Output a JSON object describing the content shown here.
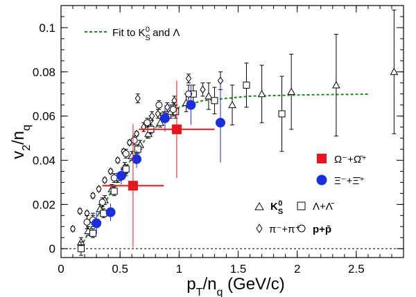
{
  "chart_data": {
    "type": "scatter",
    "xlabel": "p_T/n_q (GeV/c)",
    "ylabel": "v_2/n_q",
    "xlim": [
      0,
      2.9
    ],
    "ylim": [
      -0.004,
      0.11
    ],
    "xticks": [
      0,
      0.5,
      1,
      1.5,
      2,
      2.5
    ],
    "xtick_labels": [
      "0",
      "0.5",
      "1",
      "1.5",
      "2",
      "2.5"
    ],
    "yticks": [
      0,
      0.02,
      0.04,
      0.06,
      0.08,
      0.1
    ],
    "ytick_labels": [
      "0",
      "0.02",
      "0.04",
      "0.06",
      "0.08",
      "0.1"
    ],
    "zero_line": "dashed",
    "grid": false,
    "fit": {
      "name": "Fit to K_S^0 and Λ",
      "color": "#1a8a1a",
      "x": [
        0.17,
        0.3,
        0.45,
        0.6,
        0.75,
        0.9,
        1.0,
        1.2,
        1.4,
        1.6,
        1.8,
        2.0,
        2.2,
        2.4,
        2.6
      ],
      "y": [
        0.001,
        0.014,
        0.028,
        0.041,
        0.052,
        0.06,
        0.064,
        0.067,
        0.068,
        0.069,
        0.0693,
        0.0695,
        0.0697,
        0.0698,
        0.0699
      ]
    },
    "series": [
      {
        "name": "Ω⁻+Ω̄⁺",
        "marker": "square-filled",
        "color": "#e8161c",
        "points": [
          {
            "x": 0.61,
            "y": 0.0285,
            "yerr": 0.028,
            "xerr": 0.26
          },
          {
            "x": 0.98,
            "y": 0.054,
            "yerr": 0.022,
            "xerr": 0.32
          }
        ]
      },
      {
        "name": "Ξ⁻+Ξ̄⁺",
        "marker": "circle-filled",
        "color": "#1a2ee0",
        "points": [
          {
            "x": 0.3,
            "y": 0.0115,
            "yerr": 0.005
          },
          {
            "x": 0.42,
            "y": 0.0165,
            "yerr": 0.004
          },
          {
            "x": 0.51,
            "y": 0.033,
            "yerr": 0.004
          },
          {
            "x": 0.64,
            "y": 0.0405,
            "yerr": 0.004
          },
          {
            "x": 0.88,
            "y": 0.059,
            "yerr": 0.006
          },
          {
            "x": 1.1,
            "y": 0.065,
            "yerr": 0.009
          },
          {
            "x": 1.35,
            "y": 0.057,
            "yerr": 0.018
          }
        ]
      },
      {
        "name": "K_S^0",
        "marker": "triangle-open",
        "color": "#000000",
        "points": [
          {
            "x": 0.17,
            "y": 0.003,
            "yerr": 0.002
          },
          {
            "x": 0.23,
            "y": 0.008,
            "yerr": 0.002
          },
          {
            "x": 0.27,
            "y": 0.013,
            "yerr": 0.002
          },
          {
            "x": 0.33,
            "y": 0.018,
            "yerr": 0.002
          },
          {
            "x": 0.37,
            "y": 0.022,
            "yerr": 0.002
          },
          {
            "x": 0.43,
            "y": 0.027,
            "yerr": 0.002
          },
          {
            "x": 0.48,
            "y": 0.032,
            "yerr": 0.002
          },
          {
            "x": 0.54,
            "y": 0.037,
            "yerr": 0.002
          },
          {
            "x": 0.6,
            "y": 0.042,
            "yerr": 0.002
          },
          {
            "x": 0.67,
            "y": 0.047,
            "yerr": 0.002
          },
          {
            "x": 0.74,
            "y": 0.052,
            "yerr": 0.002
          },
          {
            "x": 0.84,
            "y": 0.057,
            "yerr": 0.002
          },
          {
            "x": 0.93,
            "y": 0.062,
            "yerr": 0.003
          },
          {
            "x": 1.06,
            "y": 0.066,
            "yerr": 0.004
          },
          {
            "x": 1.25,
            "y": 0.069,
            "yerr": 0.006
          },
          {
            "x": 1.45,
            "y": 0.065,
            "yerr": 0.009
          },
          {
            "x": 1.7,
            "y": 0.07,
            "yerr": 0.013
          },
          {
            "x": 1.95,
            "y": 0.071,
            "yerr": 0.017
          },
          {
            "x": 2.33,
            "y": 0.074,
            "yerr": 0.023
          },
          {
            "x": 2.82,
            "y": 0.08,
            "yerr": 0.028
          }
        ]
      },
      {
        "name": "Λ+Λ̄",
        "marker": "square-open",
        "color": "#000000",
        "points": [
          {
            "x": 0.17,
            "y": 0.0,
            "yerr": 0.003
          },
          {
            "x": 0.27,
            "y": 0.007,
            "yerr": 0.002
          },
          {
            "x": 0.36,
            "y": 0.016,
            "yerr": 0.002
          },
          {
            "x": 0.45,
            "y": 0.026,
            "yerr": 0.002
          },
          {
            "x": 0.55,
            "y": 0.036,
            "yerr": 0.002
          },
          {
            "x": 0.65,
            "y": 0.045,
            "yerr": 0.002
          },
          {
            "x": 0.76,
            "y": 0.054,
            "yerr": 0.002
          },
          {
            "x": 0.87,
            "y": 0.06,
            "yerr": 0.002
          },
          {
            "x": 0.97,
            "y": 0.062,
            "yerr": 0.003
          },
          {
            "x": 1.12,
            "y": 0.07,
            "yerr": 0.004
          },
          {
            "x": 1.3,
            "y": 0.067,
            "yerr": 0.006
          },
          {
            "x": 1.57,
            "y": 0.074,
            "yerr": 0.01
          },
          {
            "x": 1.87,
            "y": 0.061,
            "yerr": 0.017
          }
        ]
      },
      {
        "name": "π⁻+π⁺",
        "marker": "diamond-open",
        "color": "#000000",
        "points": [
          {
            "x": 0.1,
            "y": 0.009,
            "yerr": 0.001
          },
          {
            "x": 0.16,
            "y": 0.017,
            "yerr": 0.001
          },
          {
            "x": 0.22,
            "y": 0.016,
            "yerr": 0.001
          },
          {
            "x": 0.27,
            "y": 0.024,
            "yerr": 0.001
          },
          {
            "x": 0.32,
            "y": 0.027,
            "yerr": 0.001
          },
          {
            "x": 0.37,
            "y": 0.031,
            "yerr": 0.001
          },
          {
            "x": 0.42,
            "y": 0.035,
            "yerr": 0.001
          },
          {
            "x": 0.48,
            "y": 0.04,
            "yerr": 0.001
          },
          {
            "x": 0.53,
            "y": 0.044,
            "yerr": 0.001
          },
          {
            "x": 0.58,
            "y": 0.048,
            "yerr": 0.001
          },
          {
            "x": 0.64,
            "y": 0.052,
            "yerr": 0.001
          },
          {
            "x": 0.7,
            "y": 0.055,
            "yerr": 0.002
          },
          {
            "x": 0.76,
            "y": 0.058,
            "yerr": 0.002
          },
          {
            "x": 0.82,
            "y": 0.061,
            "yerr": 0.002
          },
          {
            "x": 0.9,
            "y": 0.064,
            "yerr": 0.002
          },
          {
            "x": 0.96,
            "y": 0.067,
            "yerr": 0.002
          },
          {
            "x": 1.08,
            "y": 0.077,
            "yerr": 0.002
          },
          {
            "x": 1.2,
            "y": 0.072,
            "yerr": 0.003
          },
          {
            "x": 1.35,
            "y": 0.076,
            "yerr": 0.004
          },
          {
            "x": 0.55,
            "y": 0.035,
            "yerr": 0.002
          },
          {
            "x": 0.65,
            "y": 0.068,
            "yerr": 0.002
          },
          {
            "x": 0.77,
            "y": 0.06,
            "yerr": 0.002
          }
        ]
      },
      {
        "name": "p+p̄",
        "marker": "circle-open",
        "color": "#000000",
        "points": [
          {
            "x": 0.22,
            "y": 0.012,
            "yerr": 0.003
          },
          {
            "x": 0.27,
            "y": 0.013,
            "yerr": 0.003
          },
          {
            "x": 0.35,
            "y": 0.021,
            "yerr": 0.002
          },
          {
            "x": 0.45,
            "y": 0.032,
            "yerr": 0.002
          },
          {
            "x": 0.55,
            "y": 0.043,
            "yerr": 0.002
          },
          {
            "x": 0.62,
            "y": 0.049,
            "yerr": 0.002
          },
          {
            "x": 0.73,
            "y": 0.057,
            "yerr": 0.002
          },
          {
            "x": 0.83,
            "y": 0.065,
            "yerr": 0.002
          },
          {
            "x": 0.95,
            "y": 0.063,
            "yerr": 0.003
          },
          {
            "x": 1.08,
            "y": 0.07,
            "yerr": 0.004
          }
        ]
      }
    ],
    "legend": {
      "fit_label_prefix": "Fit to K",
      "fit_label_sub": "S",
      "fit_label_sup": "0",
      "fit_label_suffix": " and Λ",
      "omega_label": "Ω⁻+Ω̄⁺",
      "xi_label": "Ξ⁻+Ξ̄⁺",
      "k0_label_main": "K",
      "k0_label_sub": "S",
      "k0_label_sup": "0",
      "lambda_label": "Λ+Λ̄",
      "pion_label": "π⁻+π⁺",
      "proton_label": "p+p̄"
    }
  }
}
